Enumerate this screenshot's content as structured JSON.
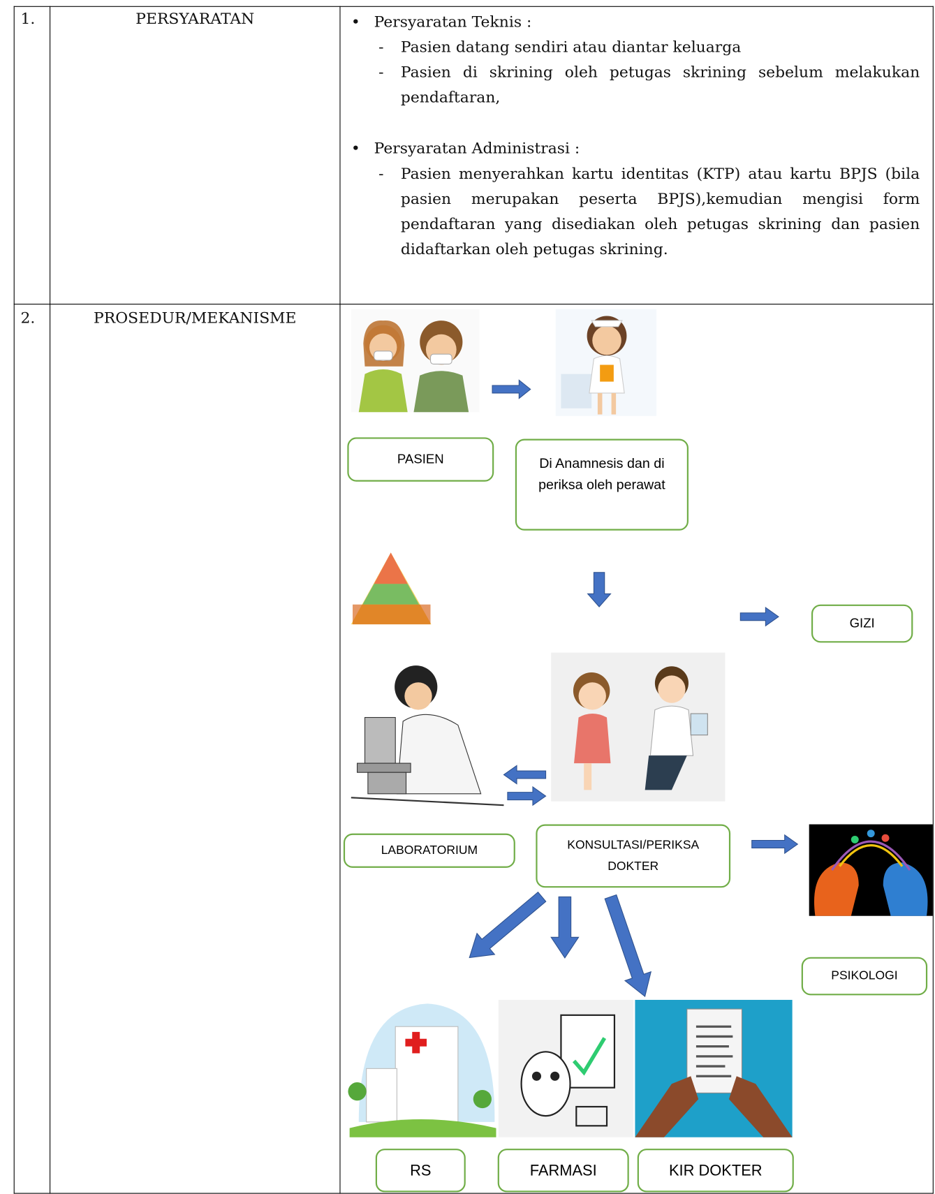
{
  "rows": [
    {
      "number": "1.",
      "title": "PERSYARATAN",
      "sections": [
        {
          "heading": "Persyaratan Teknis :",
          "items": [
            "Pasien datang sendiri atau diantar keluarga",
            "Pasien di skrining oleh petugas skrining sebelum melakukan pendaftaran,"
          ]
        },
        {
          "heading": "Persyaratan Administrasi :",
          "items": [
            "Pasien menyerahkan kartu identitas (KTP) atau kartu BPJS (bila pasien merupakan peserta BPJS),kemudian mengisi form pendaftaran yang disediakan oleh petugas skrining dan pasien didaftarkan oleh petugas skrining."
          ]
        }
      ]
    },
    {
      "number": "2.",
      "title": "PROSEDUR/MEKANISME",
      "steps": [
        "PASIEN",
        "Di Anamnesis dan di periksa oleh perawat",
        "GIZI",
        "LABORATORIUM",
        "KONSULTASI/PERIKSA DOKTER",
        "PSIKOLOGI",
        "RS",
        "FARMASI",
        "KIR DOKTER"
      ]
    }
  ]
}
